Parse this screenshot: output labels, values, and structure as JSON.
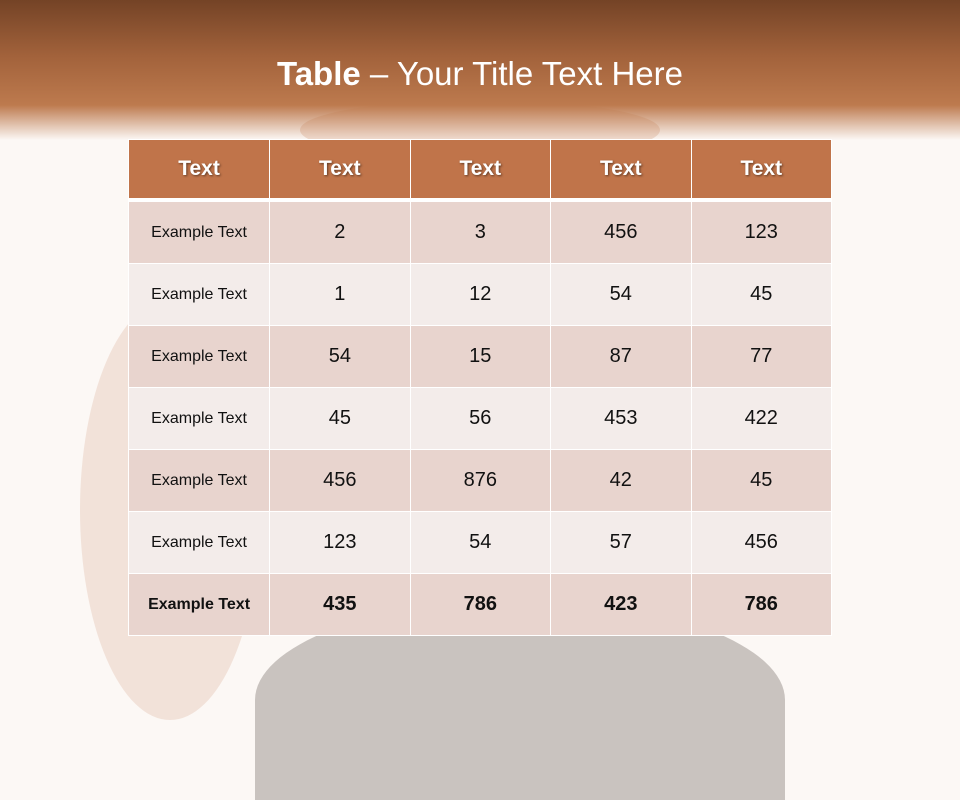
{
  "title": {
    "bold": "Table",
    "rest": " – Your Title Text Here"
  },
  "table": {
    "headers": [
      "Text",
      "Text",
      "Text",
      "Text",
      "Text"
    ],
    "rows": [
      [
        "Example Text",
        "2",
        "3",
        "456",
        "123"
      ],
      [
        "Example Text",
        "1",
        "12",
        "54",
        "45"
      ],
      [
        "Example Text",
        "54",
        "15",
        "87",
        "77"
      ],
      [
        "Example Text",
        "45",
        "56",
        "453",
        "422"
      ],
      [
        "Example Text",
        "456",
        "876",
        "42",
        "45"
      ],
      [
        "Example Text",
        "123",
        "54",
        "57",
        "456"
      ],
      [
        "Example Text",
        "435",
        "786",
        "423",
        "786"
      ]
    ]
  },
  "colors": {
    "header": "#c0744a",
    "banner": "#a2623b",
    "row_dark": "#e8d4ce",
    "row_light": "#f3ecea"
  }
}
